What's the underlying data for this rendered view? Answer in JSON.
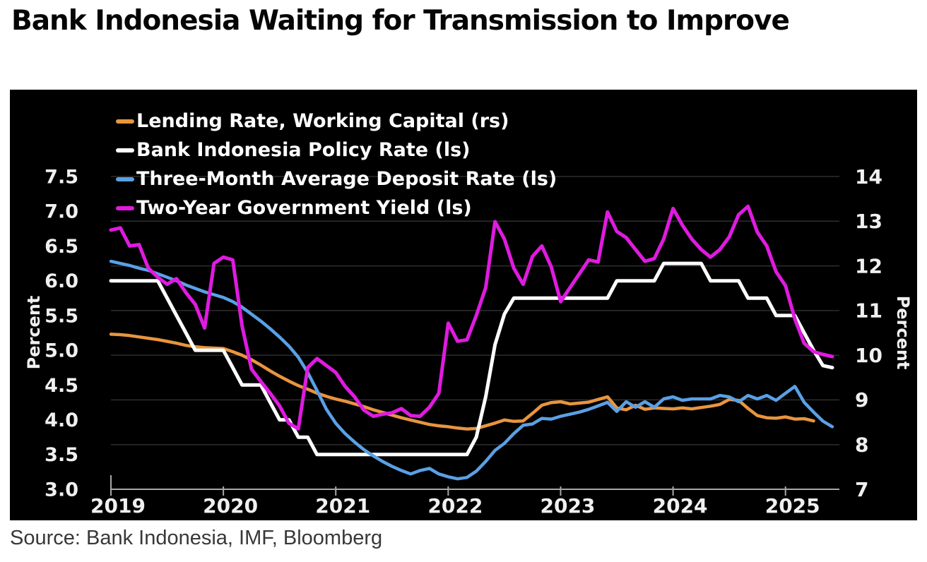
{
  "page": {
    "title": "Bank Indonesia Waiting for Transmission to Improve",
    "source": "Source: Bank Indonesia, IMF, Bloomberg"
  },
  "colors": {
    "background": "#ffffff",
    "panel": "#000000",
    "grid": "#2e2e2e",
    "axis_line": "#a8a8a8",
    "tick_text": "#f0f0f0",
    "title_text": "#050505",
    "source_text": "#383838",
    "orange": "#E8953F",
    "white": "#FFFFFF",
    "blue": "#5AA0E6",
    "magenta": "#DF1BDF"
  },
  "chart_data": {
    "type": "line",
    "title": "Bank Indonesia Waiting for Transmission to Improve",
    "x_start": "2019-01",
    "x_frequency": "monthly",
    "x_tick_labels": [
      "2019",
      "2020",
      "2021",
      "2022",
      "2023",
      "2024",
      "2025"
    ],
    "x_tick_month_indices": [
      0,
      12,
      24,
      36,
      48,
      60,
      72
    ],
    "left_axis": {
      "label": "Percent",
      "min": 3.0,
      "max": 7.5,
      "tick_labels": [
        "7.5",
        "7.0",
        "6.5",
        "6.0",
        "5.5",
        "5.0",
        "4.5",
        "4.0",
        "3.5",
        "3.0"
      ],
      "tick_values": [
        7.5,
        7.0,
        6.5,
        6.0,
        5.5,
        5.0,
        4.5,
        4.0,
        3.5,
        3.0
      ]
    },
    "right_axis": {
      "label": "Percent",
      "min": 7,
      "max": 14,
      "tick_labels": [
        "14",
        "13",
        "12",
        "11",
        "10",
        "9",
        "8",
        "7"
      ],
      "tick_values": [
        14,
        13,
        12,
        11,
        10,
        9,
        8,
        7
      ]
    },
    "gridline_right_values": [
      14,
      13,
      12,
      11,
      10,
      9,
      8
    ],
    "legend_position": "top-left-inside",
    "series": [
      {
        "name": "Lending Rate, Working Capital (rs)",
        "axis": "right",
        "color": "#E8953F",
        "line_width": 4.5,
        "values": [
          10.47,
          10.46,
          10.44,
          10.41,
          10.38,
          10.35,
          10.31,
          10.27,
          10.22,
          10.19,
          10.17,
          10.16,
          10.15,
          10.08,
          10.0,
          9.9,
          9.78,
          9.65,
          9.53,
          9.42,
          9.32,
          9.24,
          9.15,
          9.08,
          9.02,
          8.97,
          8.91,
          8.85,
          8.78,
          8.72,
          8.66,
          8.6,
          8.55,
          8.5,
          8.45,
          8.42,
          8.4,
          8.37,
          8.35,
          8.36,
          8.42,
          8.48,
          8.55,
          8.52,
          8.53,
          8.7,
          8.88,
          8.94,
          8.96,
          8.91,
          8.93,
          8.95,
          9.01,
          9.07,
          8.82,
          8.78,
          8.88,
          8.79,
          8.82,
          8.81,
          8.8,
          8.82,
          8.8,
          8.83,
          8.86,
          8.9,
          9.01,
          8.99,
          8.81,
          8.65,
          8.6,
          8.59,
          8.62,
          8.57,
          8.58,
          8.53,
          null,
          null
        ]
      },
      {
        "name": "Bank Indonesia Policy Rate (ls)",
        "axis": "left",
        "color": "#FFFFFF",
        "line_width": 5,
        "values": [
          6.0,
          6.0,
          6.0,
          6.0,
          6.0,
          6.0,
          5.75,
          5.5,
          5.25,
          5.0,
          5.0,
          5.0,
          5.0,
          4.75,
          4.5,
          4.5,
          4.5,
          4.25,
          4.0,
          4.0,
          3.75,
          3.75,
          3.5,
          3.5,
          3.5,
          3.5,
          3.5,
          3.5,
          3.5,
          3.5,
          3.5,
          3.5,
          3.5,
          3.5,
          3.5,
          3.5,
          3.5,
          3.5,
          3.5,
          3.75,
          4.33,
          5.08,
          5.52,
          5.75,
          5.75,
          5.75,
          5.75,
          5.75,
          5.75,
          5.75,
          5.75,
          5.75,
          5.75,
          5.75,
          6.0,
          6.0,
          6.0,
          6.0,
          6.0,
          6.25,
          6.25,
          6.25,
          6.25,
          6.25,
          6.0,
          6.0,
          6.0,
          6.0,
          5.75,
          5.75,
          5.75,
          5.5,
          5.5,
          5.5,
          5.25,
          5.0,
          4.78,
          4.75
        ]
      },
      {
        "name": "Three-Month Average Deposit Rate (ls)",
        "axis": "left",
        "color": "#5AA0E6",
        "line_width": 4.5,
        "values": [
          6.28,
          6.25,
          6.22,
          6.18,
          6.15,
          6.1,
          6.05,
          6.0,
          5.94,
          5.89,
          5.84,
          5.8,
          5.76,
          5.7,
          5.62,
          5.52,
          5.42,
          5.31,
          5.19,
          5.06,
          4.9,
          4.68,
          4.42,
          4.15,
          3.95,
          3.8,
          3.68,
          3.57,
          3.48,
          3.4,
          3.33,
          3.27,
          3.22,
          3.27,
          3.3,
          3.22,
          3.18,
          3.15,
          3.17,
          3.26,
          3.4,
          3.56,
          3.66,
          3.8,
          3.92,
          3.94,
          4.02,
          4.01,
          4.05,
          4.08,
          4.11,
          4.15,
          4.2,
          4.25,
          4.12,
          4.26,
          4.18,
          4.26,
          4.18,
          4.3,
          4.33,
          4.28,
          4.3,
          4.3,
          4.3,
          4.35,
          4.33,
          4.26,
          4.35,
          4.3,
          4.35,
          4.28,
          4.38,
          4.48,
          4.25,
          4.11,
          3.98,
          3.9
        ]
      },
      {
        "name": "Two-Year Government Yield (ls)",
        "axis": "left",
        "color": "#DF1BDF",
        "line_width": 5,
        "values": [
          6.73,
          6.76,
          6.5,
          6.52,
          6.18,
          6.05,
          5.95,
          6.03,
          5.83,
          5.66,
          5.32,
          6.25,
          6.34,
          6.3,
          5.35,
          4.73,
          4.55,
          4.38,
          4.2,
          3.95,
          3.87,
          4.75,
          4.88,
          4.78,
          4.68,
          4.48,
          4.33,
          4.14,
          4.05,
          4.08,
          4.1,
          4.16,
          4.06,
          4.05,
          4.18,
          4.38,
          5.39,
          5.13,
          5.15,
          5.5,
          5.9,
          6.85,
          6.6,
          6.18,
          5.95,
          6.35,
          6.5,
          6.2,
          5.7,
          5.9,
          6.1,
          6.3,
          6.27,
          6.99,
          6.71,
          6.62,
          6.45,
          6.28,
          6.32,
          6.6,
          7.04,
          6.8,
          6.6,
          6.45,
          6.34,
          6.45,
          6.63,
          6.95,
          7.07,
          6.7,
          6.5,
          6.13,
          5.93,
          5.45,
          5.1,
          4.98,
          4.94,
          4.91
        ]
      }
    ]
  }
}
